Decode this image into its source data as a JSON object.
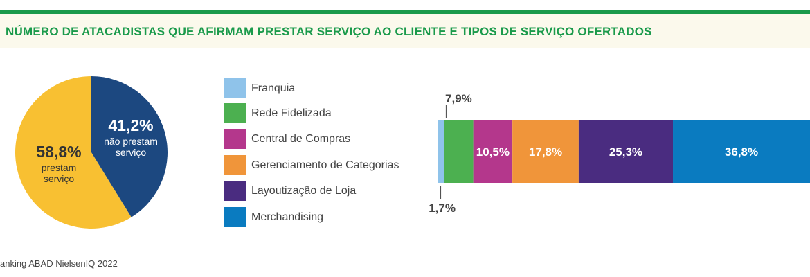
{
  "title": "NÚMERO DE ATACADISTAS QUE AFIRMAM PRESTAR SERVIÇO AO CLIENTE E TIPOS DE SERVIÇO OFERTADOS",
  "source": "anking ABAD NielsenIQ 2022",
  "colors": {
    "accent": "#1a9a4b",
    "pie_yes": "#f8c032",
    "pie_no": "#1c4880"
  },
  "chart_data": [
    {
      "type": "pie",
      "slices": [
        {
          "label_pct": "58,8%",
          "label_text": [
            "prestam",
            "serviço"
          ],
          "value": 58.8,
          "color": "#f8c032"
        },
        {
          "label_pct": "41,2%",
          "label_text": [
            "não prestam",
            "serviço"
          ],
          "value": 41.2,
          "color": "#1c4880"
        }
      ]
    },
    {
      "type": "bar",
      "orientation": "horizontal-stacked",
      "series": [
        {
          "name": "Franquia",
          "value": 1.7,
          "label": "1,7%",
          "color": "#8fc3ea"
        },
        {
          "name": "Rede Fidelizada",
          "value": 7.9,
          "label": "7,9%",
          "color": "#4cb050"
        },
        {
          "name": "Central de Compras",
          "value": 10.5,
          "label": "10,5%",
          "color": "#b4378c"
        },
        {
          "name": "Gerenciamento de Categorias",
          "value": 17.8,
          "label": "17,8%",
          "color": "#f0953a"
        },
        {
          "name": "Layoutização de Loja",
          "value": 25.3,
          "label": "25,3%",
          "color": "#4a2c80"
        },
        {
          "name": "Merchandising",
          "value": 36.8,
          "label": "36,8%",
          "color": "#0a7bc0"
        }
      ]
    }
  ]
}
